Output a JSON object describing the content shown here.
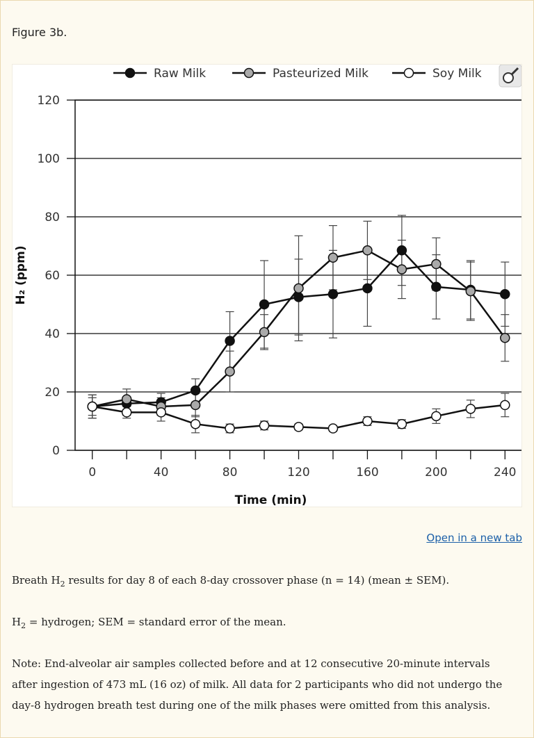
{
  "figure_label": "Figure 3b.",
  "link": "Open in a new tab",
  "caption": {
    "p1": [
      "Breath H",
      "2",
      " results for day 8 of each 8-day crossover phase (n = 14) (mean ± SEM)."
    ],
    "p2": [
      "H",
      "2",
      " = hydrogen; SEM = standard error of the mean."
    ],
    "note": "Note: End-alveolar air samples collected before and at 12 consecutive 20-minute intervals after ingestion of 473 mL (16 oz) of milk. All data for 2 participants who did not undergo the day-8 hydrogen breath test during one of the milk phases were omitted from this analysis."
  },
  "chart_data": {
    "type": "line",
    "x_label": "Time (min)",
    "y_label": "H₂ (ppm)",
    "x": [
      0,
      20,
      40,
      60,
      80,
      100,
      120,
      140,
      160,
      180,
      200,
      220,
      240
    ],
    "series": [
      {
        "name": "Raw Milk",
        "color": "#111111",
        "values": [
          15,
          16,
          16.5,
          20.5,
          37.5,
          50,
          52.5,
          53.5,
          55.5,
          68.5,
          56,
          55,
          53.5
        ],
        "errors": [
          4,
          4,
          3,
          4,
          10,
          15,
          13,
          15,
          13,
          12,
          11,
          10,
          11
        ]
      },
      {
        "name": "Pasteurized Milk",
        "color": "#aaaaaa",
        "values": [
          15,
          17.5,
          15,
          15.5,
          27,
          40.5,
          55.5,
          66,
          68.5,
          62,
          63.8,
          54.5,
          38.5
        ],
        "errors": [
          4,
          3.5,
          3,
          4,
          7,
          6,
          18,
          11,
          10,
          10,
          9,
          10,
          8
        ]
      },
      {
        "name": "Soy Milk",
        "color": "#ffffff",
        "values": [
          15,
          13,
          13,
          9,
          7.5,
          8.5,
          8,
          7.5,
          10,
          9,
          11.7,
          14.2,
          15.5
        ],
        "errors": [
          3,
          2,
          3,
          3,
          1.5,
          1.5,
          1,
          1,
          1.5,
          1.5,
          2.5,
          3,
          4
        ]
      }
    ],
    "xlim": [
      -10,
      250
    ],
    "xticks": [
      0,
      40,
      80,
      120,
      160,
      200,
      240
    ],
    "xminorticks": [
      20,
      60,
      100,
      140,
      180,
      220
    ],
    "ylim": [
      0,
      120
    ],
    "yticks": [
      0,
      20,
      40,
      60,
      80,
      100,
      120
    ],
    "grid": true,
    "legend": "top"
  }
}
